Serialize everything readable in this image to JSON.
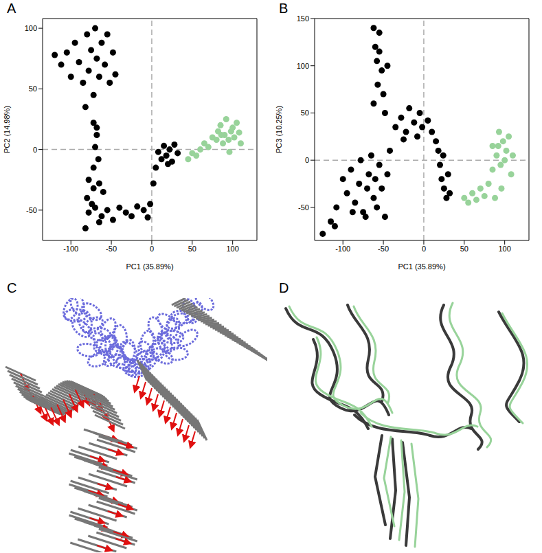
{
  "chart_data": [
    {
      "type": "scatter",
      "panel_label": "A",
      "x_label": "PC1 (35.89%)",
      "y_label": "PC2 (14.98%)",
      "xlim": [
        -135,
        130
      ],
      "xticks": [
        -100,
        -50,
        0,
        50,
        100
      ],
      "ylim": [
        -75,
        108
      ],
      "yticks": [
        -50,
        0,
        50,
        100
      ],
      "ref_lines": {
        "x": [
          0
        ],
        "y": [
          0
        ]
      },
      "grid": false,
      "series": [
        {
          "color": "#000000",
          "marker": "circle",
          "x": [
            -120,
            -112,
            -105,
            -100,
            -95,
            -90,
            -85,
            -80,
            -78,
            -75,
            -72,
            -70,
            -68,
            -65,
            -62,
            -58,
            -52,
            -48,
            -55,
            -82,
            -45,
            -72,
            -68,
            -70,
            -66,
            -72,
            -68,
            -78,
            -72,
            -65,
            -80,
            -60,
            -74,
            -82,
            -78,
            -70,
            -62,
            -55,
            -48,
            -40,
            -32,
            -25,
            -18,
            -10,
            -5,
            -2,
            -65,
            2,
            5,
            8,
            12,
            15,
            18,
            22,
            25,
            28,
            32,
            20
          ],
          "y": [
            78,
            70,
            80,
            60,
            88,
            72,
            55,
            95,
            65,
            82,
            45,
            100,
            75,
            60,
            88,
            70,
            55,
            80,
            95,
            35,
            62,
            22,
            12,
            2,
            -8,
            -15,
            18,
            -25,
            -32,
            -28,
            -40,
            -35,
            -45,
            -65,
            -52,
            -48,
            -55,
            -50,
            -58,
            -48,
            -52,
            -55,
            -47,
            -50,
            -56,
            -45,
            -60,
            -28,
            -15,
            -2,
            -8,
            3,
            -5,
            0,
            -10,
            4,
            -3,
            -12
          ]
        },
        {
          "color": "#98d39a",
          "marker": "circle",
          "x": [
            45,
            50,
            55,
            60,
            65,
            70,
            75,
            80,
            82,
            85,
            88,
            90,
            92,
            95,
            98,
            100,
            102,
            105,
            108,
            110,
            96,
            86
          ],
          "y": [
            -8,
            -3,
            -5,
            0,
            5,
            2,
            10,
            8,
            15,
            20,
            5,
            12,
            25,
            8,
            15,
            18,
            10,
            22,
            14,
            5,
            -2,
            12
          ]
        }
      ]
    },
    {
      "type": "scatter",
      "panel_label": "B",
      "x_label": "PC1 (35.89%)",
      "y_label": "PC3 (10.25%)",
      "xlim": [
        -135,
        130
      ],
      "xticks": [
        -100,
        -50,
        0,
        50,
        100
      ],
      "ylim": [
        -85,
        150
      ],
      "yticks": [
        -50,
        0,
        50,
        100,
        150
      ],
      "ref_lines": {
        "x": [
          0
        ],
        "y": [
          0
        ]
      },
      "grid": false,
      "series": [
        {
          "color": "#000000",
          "marker": "circle",
          "x": [
            -62,
            -55,
            -60,
            -58,
            -52,
            -57,
            -50,
            -62,
            -48,
            -55,
            -45,
            -100,
            -95,
            -90,
            -85,
            -80,
            -78,
            -75,
            -70,
            -68,
            -65,
            -62,
            -60,
            -58,
            -55,
            -52,
            -48,
            -45,
            -42,
            -88,
            -72,
            -125,
            -115,
            -108,
            -110,
            -35,
            -28,
            -22,
            -18,
            -12,
            -8,
            -5,
            -2,
            5,
            10,
            15,
            -25,
            18,
            20,
            22,
            25,
            28,
            30,
            32,
            24
          ],
          "y": [
            140,
            135,
            120,
            105,
            95,
            80,
            70,
            60,
            50,
            115,
            100,
            -20,
            -35,
            -10,
            -45,
            -25,
            0,
            -55,
            -30,
            -15,
            5,
            -40,
            -20,
            -50,
            -5,
            -30,
            -60,
            -15,
            10,
            -55,
            -60,
            -78,
            -65,
            -50,
            -70,
            35,
            45,
            30,
            55,
            40,
            25,
            50,
            35,
            42,
            30,
            20,
            22,
            10,
            -5,
            -20,
            -30,
            -40,
            -15,
            -35,
            5
          ]
        },
        {
          "color": "#98d39a",
          "marker": "circle",
          "x": [
            50,
            55,
            60,
            65,
            70,
            75,
            80,
            85,
            88,
            90,
            92,
            95,
            98,
            100,
            102,
            105,
            108,
            110,
            96,
            93,
            85
          ],
          "y": [
            -40,
            -45,
            -35,
            -42,
            -30,
            -38,
            -25,
            -10,
            -40,
            5,
            15,
            -5,
            20,
            0,
            10,
            25,
            -15,
            5,
            -30,
            30,
            15
          ]
        }
      ]
    }
  ],
  "image_panels": [
    {
      "panel_label": "C"
    },
    {
      "panel_label": "D"
    }
  ]
}
